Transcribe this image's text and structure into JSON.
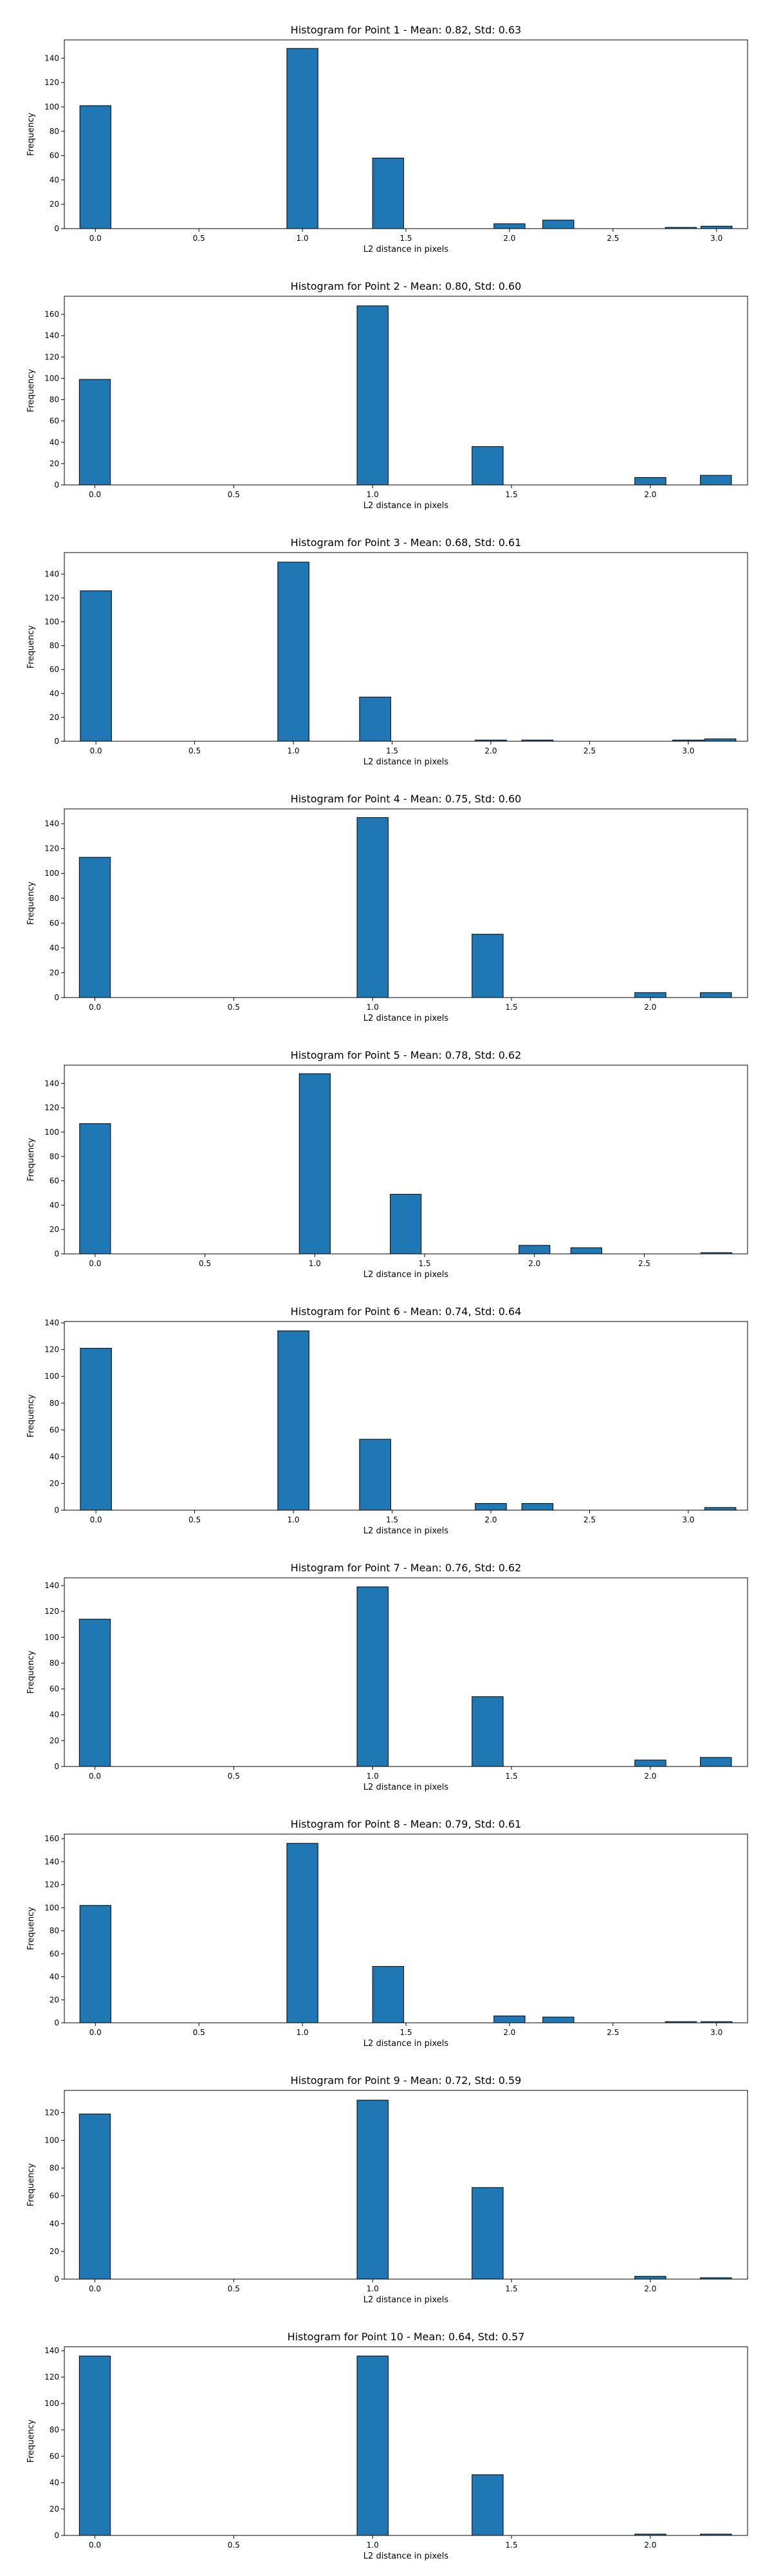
{
  "chart_data": [
    {
      "type": "bar",
      "title": "Histogram for Point 1 - Mean: 0.82, Std: 0.63",
      "xlabel": "L2 distance in pixels",
      "ylabel": "Frequency",
      "xlim": [
        -0.15,
        3.15
      ],
      "ylim": [
        0,
        155
      ],
      "xticks": [
        0.0,
        0.5,
        1.0,
        1.5,
        2.0,
        2.5,
        3.0
      ],
      "xtick_labels": [
        "0.0",
        "0.5",
        "1.0",
        "1.5",
        "2.0",
        "2.5",
        "3.0"
      ],
      "yticks": [
        0,
        20,
        40,
        60,
        80,
        100,
        120,
        140
      ],
      "bin_width": 0.15,
      "x": [
        0,
        1,
        1.414,
        2,
        2.236,
        2.828,
        3
      ],
      "values": [
        101,
        148,
        58,
        4,
        7,
        1,
        2
      ],
      "color": "#1f77b4",
      "edge_color": "#000000",
      "grid": false
    },
    {
      "type": "bar",
      "title": "Histogram for Point 2 - Mean: 0.80, Std: 0.60",
      "xlabel": "L2 distance in pixels",
      "ylabel": "Frequency",
      "xlim": [
        -0.11,
        2.35
      ],
      "ylim": [
        0,
        177
      ],
      "xticks": [
        0.0,
        0.5,
        1.0,
        1.5,
        2.0
      ],
      "xtick_labels": [
        "0.0",
        "0.5",
        "1.0",
        "1.5",
        "2.0"
      ],
      "yticks": [
        0,
        20,
        40,
        60,
        80,
        100,
        120,
        140,
        160
      ],
      "bin_width": 0.112,
      "x": [
        0,
        1,
        1.414,
        2,
        2.236
      ],
      "values": [
        99,
        168,
        36,
        7,
        9
      ],
      "color": "#1f77b4",
      "edge_color": "#000000",
      "grid": false
    },
    {
      "type": "bar",
      "title": "Histogram for Point 3 - Mean: 0.68, Std: 0.61",
      "xlabel": "L2 distance in pixels",
      "ylabel": "Frequency",
      "xlim": [
        -0.16,
        3.3
      ],
      "ylim": [
        0,
        158
      ],
      "xticks": [
        0.0,
        0.5,
        1.0,
        1.5,
        2.0,
        2.5,
        3.0
      ],
      "xtick_labels": [
        "0.0",
        "0.5",
        "1.0",
        "1.5",
        "2.0",
        "2.5",
        "3.0"
      ],
      "yticks": [
        0,
        20,
        40,
        60,
        80,
        100,
        120,
        140
      ],
      "bin_width": 0.158,
      "x": [
        0,
        1,
        1.414,
        2,
        2.236,
        3,
        3.162
      ],
      "values": [
        126,
        150,
        37,
        1,
        1,
        1,
        2
      ],
      "color": "#1f77b4",
      "edge_color": "#000000",
      "grid": false
    },
    {
      "type": "bar",
      "title": "Histogram for Point 4 - Mean: 0.75, Std: 0.60",
      "xlabel": "L2 distance in pixels",
      "ylabel": "Frequency",
      "xlim": [
        -0.11,
        2.35
      ],
      "ylim": [
        0,
        152
      ],
      "xticks": [
        0.0,
        0.5,
        1.0,
        1.5,
        2.0
      ],
      "xtick_labels": [
        "0.0",
        "0.5",
        "1.0",
        "1.5",
        "2.0"
      ],
      "yticks": [
        0,
        20,
        40,
        60,
        80,
        100,
        120,
        140
      ],
      "bin_width": 0.112,
      "x": [
        0,
        1,
        1.414,
        2,
        2.236
      ],
      "values": [
        113,
        145,
        51,
        4,
        4
      ],
      "color": "#1f77b4",
      "edge_color": "#000000",
      "grid": false
    },
    {
      "type": "bar",
      "title": "Histogram for Point 5 - Mean: 0.78, Std: 0.62",
      "xlabel": "L2 distance in pixels",
      "ylabel": "Frequency",
      "xlim": [
        -0.14,
        2.97
      ],
      "ylim": [
        0,
        155
      ],
      "xticks": [
        0.0,
        0.5,
        1.0,
        1.5,
        2.0,
        2.5
      ],
      "xtick_labels": [
        "0.0",
        "0.5",
        "1.0",
        "1.5",
        "2.0",
        "2.5"
      ],
      "yticks": [
        0,
        20,
        40,
        60,
        80,
        100,
        120,
        140
      ],
      "bin_width": 0.141,
      "x": [
        0,
        1,
        1.414,
        2,
        2.236,
        2.828
      ],
      "values": [
        107,
        148,
        49,
        7,
        5,
        1
      ],
      "color": "#1f77b4",
      "edge_color": "#000000",
      "grid": false
    },
    {
      "type": "bar",
      "title": "Histogram for Point 6 - Mean: 0.74, Std: 0.64",
      "xlabel": "L2 distance in pixels",
      "ylabel": "Frequency",
      "xlim": [
        -0.16,
        3.3
      ],
      "ylim": [
        0,
        141
      ],
      "xticks": [
        0.0,
        0.5,
        1.0,
        1.5,
        2.0,
        2.5,
        3.0
      ],
      "xtick_labels": [
        "0.0",
        "0.5",
        "1.0",
        "1.5",
        "2.0",
        "2.5",
        "3.0"
      ],
      "yticks": [
        0,
        20,
        40,
        60,
        80,
        100,
        120,
        140
      ],
      "bin_width": 0.158,
      "x": [
        0,
        1,
        1.414,
        2,
        2.236,
        3.162
      ],
      "values": [
        121,
        134,
        53,
        5,
        5,
        2
      ],
      "color": "#1f77b4",
      "edge_color": "#000000",
      "grid": false
    },
    {
      "type": "bar",
      "title": "Histogram for Point 7 - Mean: 0.76, Std: 0.62",
      "xlabel": "L2 distance in pixels",
      "ylabel": "Frequency",
      "xlim": [
        -0.11,
        2.35
      ],
      "ylim": [
        0,
        146
      ],
      "xticks": [
        0.0,
        0.5,
        1.0,
        1.5,
        2.0
      ],
      "xtick_labels": [
        "0.0",
        "0.5",
        "1.0",
        "1.5",
        "2.0"
      ],
      "yticks": [
        0,
        20,
        40,
        60,
        80,
        100,
        120,
        140
      ],
      "bin_width": 0.112,
      "x": [
        0,
        1,
        1.414,
        2,
        2.236
      ],
      "values": [
        114,
        139,
        54,
        5,
        7
      ],
      "color": "#1f77b4",
      "edge_color": "#000000",
      "grid": false
    },
    {
      "type": "bar",
      "title": "Histogram for Point 8 - Mean: 0.79, Std: 0.61",
      "xlabel": "L2 distance in pixels",
      "ylabel": "Frequency",
      "xlim": [
        -0.15,
        3.15
      ],
      "ylim": [
        0,
        164
      ],
      "xticks": [
        0.0,
        0.5,
        1.0,
        1.5,
        2.0,
        2.5,
        3.0
      ],
      "xtick_labels": [
        "0.0",
        "0.5",
        "1.0",
        "1.5",
        "2.0",
        "2.5",
        "3.0"
      ],
      "yticks": [
        0,
        20,
        40,
        60,
        80,
        100,
        120,
        140,
        160
      ],
      "bin_width": 0.15,
      "x": [
        0,
        1,
        1.414,
        2,
        2.236,
        2.828,
        3
      ],
      "values": [
        102,
        156,
        49,
        6,
        5,
        1,
        1
      ],
      "color": "#1f77b4",
      "edge_color": "#000000",
      "grid": false
    },
    {
      "type": "bar",
      "title": "Histogram for Point 9 - Mean: 0.72, Std: 0.59",
      "xlabel": "L2 distance in pixels",
      "ylabel": "Frequency",
      "xlim": [
        -0.11,
        2.35
      ],
      "ylim": [
        0,
        136
      ],
      "xticks": [
        0.0,
        0.5,
        1.0,
        1.5,
        2.0
      ],
      "xtick_labels": [
        "0.0",
        "0.5",
        "1.0",
        "1.5",
        "2.0"
      ],
      "yticks": [
        0,
        20,
        40,
        60,
        80,
        100,
        120
      ],
      "bin_width": 0.112,
      "x": [
        0,
        1,
        1.414,
        2,
        2.236
      ],
      "values": [
        119,
        129,
        66,
        2,
        1
      ],
      "color": "#1f77b4",
      "edge_color": "#000000",
      "grid": false
    },
    {
      "type": "bar",
      "title": "Histogram for Point 10 - Mean: 0.64, Std: 0.57",
      "xlabel": "L2 distance in pixels",
      "ylabel": "Frequency",
      "xlim": [
        -0.11,
        2.35
      ],
      "ylim": [
        0,
        143
      ],
      "xticks": [
        0.0,
        0.5,
        1.0,
        1.5,
        2.0
      ],
      "xtick_labels": [
        "0.0",
        "0.5",
        "1.0",
        "1.5",
        "2.0"
      ],
      "yticks": [
        0,
        20,
        40,
        60,
        80,
        100,
        120,
        140
      ],
      "bin_width": 0.112,
      "x": [
        0,
        1,
        1.414,
        2,
        2.236
      ],
      "values": [
        136,
        136,
        46,
        1,
        1
      ],
      "color": "#1f77b4",
      "edge_color": "#000000",
      "grid": false
    }
  ]
}
